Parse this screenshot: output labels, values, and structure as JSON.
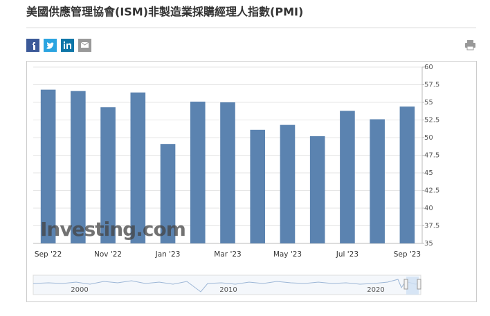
{
  "page_title": "美國供應管理協會(ISM)非製造業採購經理人指數(PMI)",
  "chart_data": {
    "type": "bar",
    "watermark": "Investing.com",
    "categories": [
      "Sep '22",
      null,
      "Nov '22",
      null,
      "Jan '23",
      null,
      "Mar '23",
      null,
      "May '23",
      null,
      "Jul '23",
      null,
      "Sep '23"
    ],
    "values": [
      56.8,
      56.6,
      54.3,
      56.4,
      49.1,
      55.1,
      55.0,
      51.1,
      51.8,
      50.2,
      53.8,
      52.6,
      54.4
    ],
    "color": "#5b83b0",
    "ylim": [
      35,
      60
    ],
    "yticks": [
      35,
      37.5,
      40,
      42.5,
      45,
      47.5,
      50,
      52.5,
      55,
      57.5,
      60
    ],
    "grid": true,
    "y_axis_side": "right",
    "navigator_labels": [
      "2000",
      "2010",
      "2020"
    ]
  }
}
